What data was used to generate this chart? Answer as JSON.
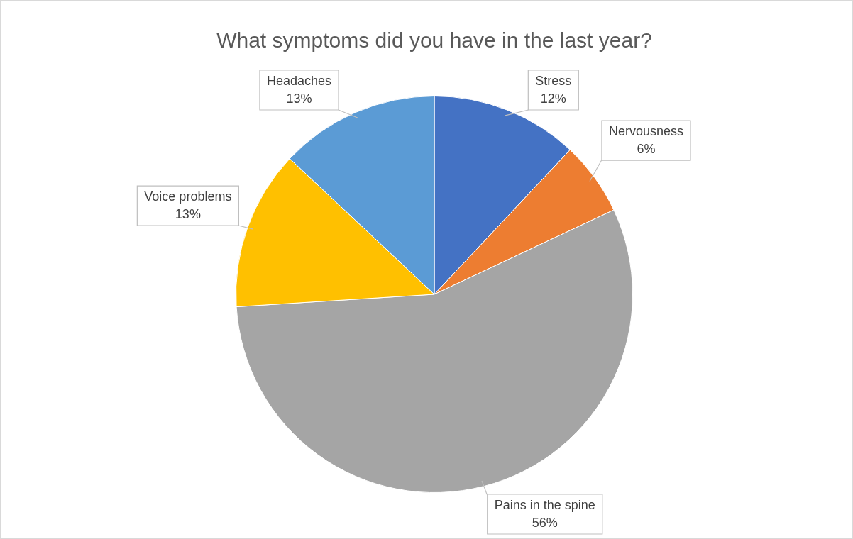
{
  "chart_data": {
    "type": "pie",
    "title": "What symptoms did you have in the last year?",
    "categories": [
      "Stress",
      "Nervousness",
      "Pains in the spine",
      "Voice problems",
      "Headaches"
    ],
    "values": [
      12,
      6,
      56,
      13,
      13
    ],
    "colors": [
      "#4472c4",
      "#ed7d31",
      "#a5a5a5",
      "#ffc000",
      "#5b9bd5"
    ],
    "value_labels": [
      "12%",
      "6%",
      "56%",
      "13%",
      "13%"
    ],
    "legend": false
  }
}
